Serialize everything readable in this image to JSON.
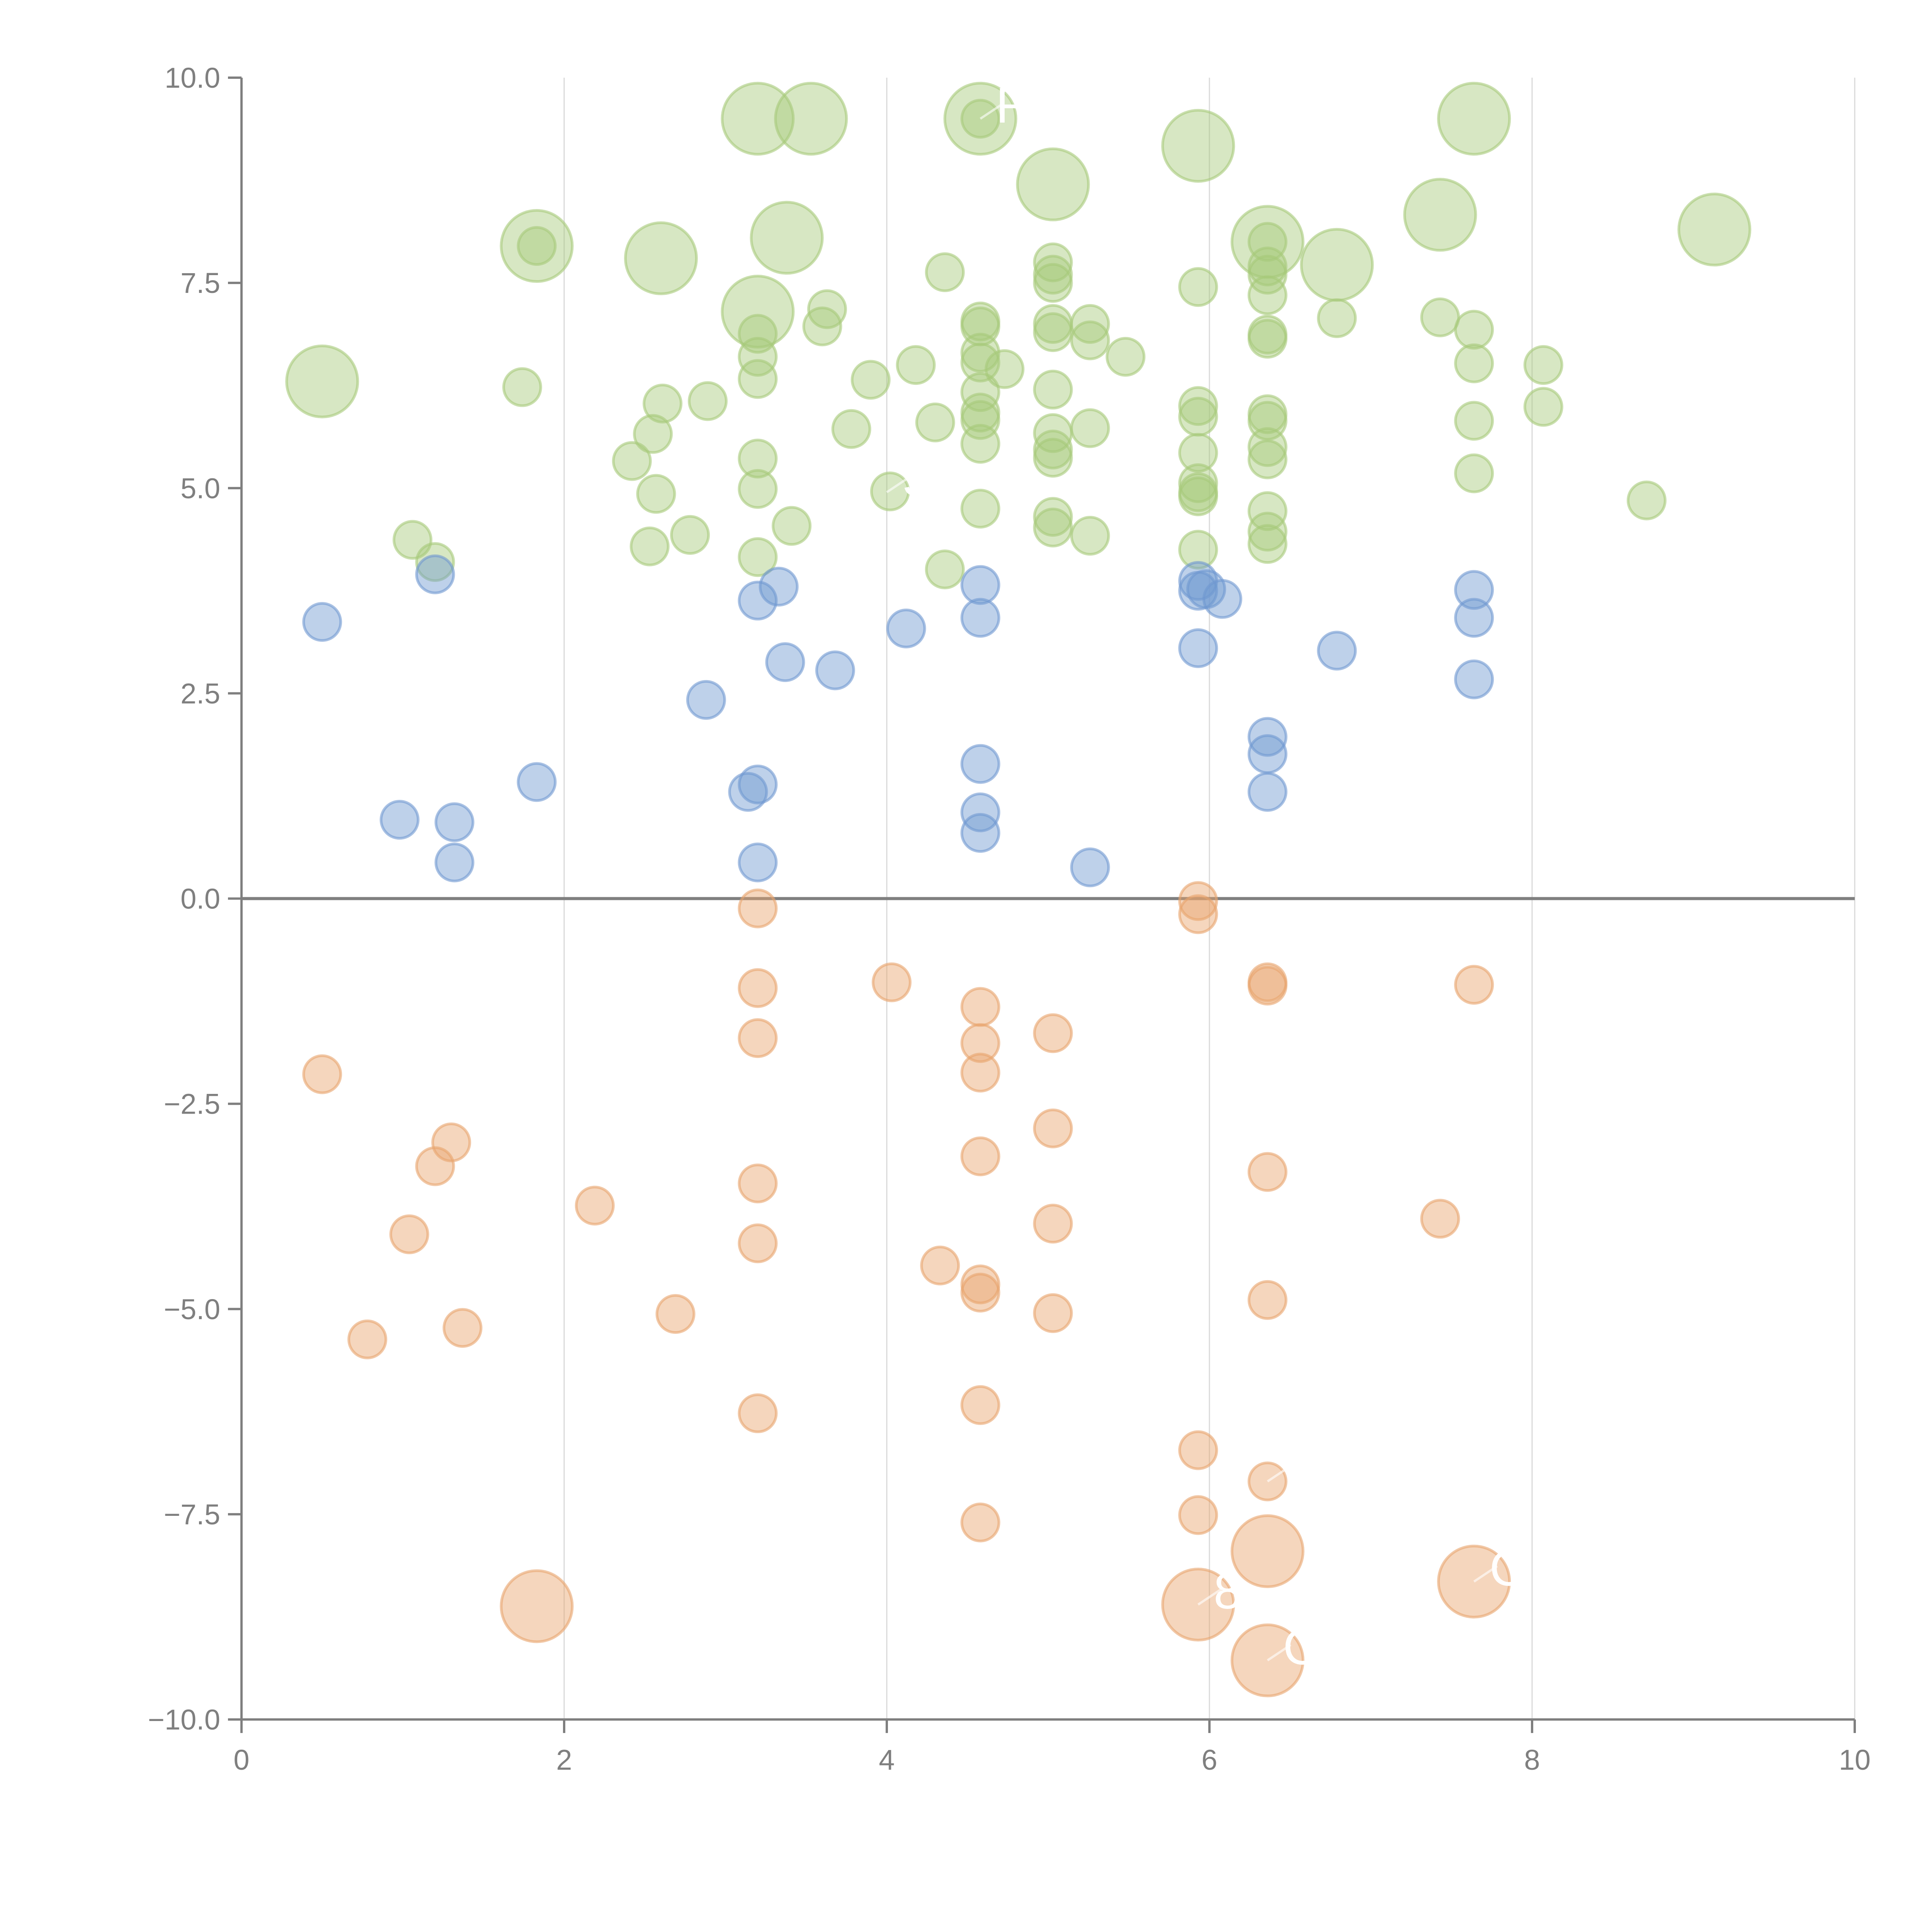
{
  "chart_data": {
    "type": "scatter",
    "subtype": "bubble",
    "title": "",
    "xlabel": "",
    "ylabel": "",
    "xlim": [
      0,
      10
    ],
    "ylim": [
      -10,
      10
    ],
    "grid": "vertical-lines-at-x-ticks",
    "legend": "none",
    "x_ticks": [
      0,
      2,
      4,
      6,
      8,
      10
    ],
    "x_tick_labels": [
      "0",
      "2",
      "4",
      "6",
      "8",
      "10"
    ],
    "y_ticks": [
      -10,
      -7.5,
      -5,
      -2.5,
      0,
      2.5,
      5,
      7.5,
      10
    ],
    "y_tick_labels": [
      "−10.0",
      "−7.5",
      "−5.0",
      "−2.5",
      "0.0",
      "2.5",
      "5.0",
      "7.5",
      "10.0"
    ],
    "reference_line": {
      "axis": "y",
      "value": 0
    },
    "colors": {
      "green": "#a6c97a",
      "blue": "#6f98d0",
      "orange": "#e8a46c",
      "axis": "#7f7f7f",
      "grid": "#d9d9d9",
      "label": "#ffffff"
    },
    "series": [
      {
        "name": "green",
        "color": "#a6c97a",
        "points": [
          {
            "x": 0.5,
            "y": 6.3,
            "size": "large"
          },
          {
            "x": 1.83,
            "y": 7.95,
            "size": "large"
          },
          {
            "x": 1.83,
            "y": 7.95,
            "size": "small"
          },
          {
            "x": 2.6,
            "y": 7.8,
            "size": "large"
          },
          {
            "x": 3.2,
            "y": 9.5,
            "size": "large"
          },
          {
            "x": 3.53,
            "y": 9.5,
            "size": "large"
          },
          {
            "x": 3.38,
            "y": 8.05,
            "size": "large"
          },
          {
            "x": 3.2,
            "y": 7.15,
            "size": "large"
          },
          {
            "x": 4.58,
            "y": 9.5,
            "size": "large"
          },
          {
            "x": 4.58,
            "y": 9.5,
            "size": "small"
          },
          {
            "x": 5.03,
            "y": 8.7,
            "size": "large"
          },
          {
            "x": 5.93,
            "y": 9.17,
            "size": "large"
          },
          {
            "x": 6.36,
            "y": 8.0,
            "size": "large"
          },
          {
            "x": 6.79,
            "y": 7.72,
            "size": "large"
          },
          {
            "x": 7.43,
            "y": 8.33,
            "size": "large"
          },
          {
            "x": 7.64,
            "y": 9.5,
            "size": "large"
          },
          {
            "x": 9.13,
            "y": 8.15,
            "size": "large"
          },
          {
            "x": 1.06,
            "y": 4.37,
            "size": "small"
          },
          {
            "x": 1.2,
            "y": 4.1,
            "size": "small"
          },
          {
            "x": 1.74,
            "y": 6.23,
            "size": "small"
          },
          {
            "x": 2.42,
            "y": 5.33,
            "size": "small"
          },
          {
            "x": 2.53,
            "y": 4.29,
            "size": "small"
          },
          {
            "x": 2.57,
            "y": 4.93,
            "size": "small"
          },
          {
            "x": 2.55,
            "y": 5.66,
            "size": "small"
          },
          {
            "x": 2.61,
            "y": 6.03,
            "size": "small"
          },
          {
            "x": 2.78,
            "y": 4.43,
            "size": "small"
          },
          {
            "x": 2.89,
            "y": 6.06,
            "size": "small"
          },
          {
            "x": 3.2,
            "y": 6.88,
            "size": "small"
          },
          {
            "x": 3.2,
            "y": 6.6,
            "size": "small"
          },
          {
            "x": 3.2,
            "y": 6.33,
            "size": "small"
          },
          {
            "x": 3.2,
            "y": 5.36,
            "size": "small"
          },
          {
            "x": 3.2,
            "y": 4.99,
            "size": "small"
          },
          {
            "x": 3.2,
            "y": 4.16,
            "size": "small"
          },
          {
            "x": 3.41,
            "y": 4.54,
            "size": "small"
          },
          {
            "x": 3.6,
            "y": 6.97,
            "size": "small"
          },
          {
            "x": 3.63,
            "y": 7.18,
            "size": "small"
          },
          {
            "x": 3.78,
            "y": 5.72,
            "size": "small"
          },
          {
            "x": 3.9,
            "y": 6.32,
            "size": "small"
          },
          {
            "x": 4.02,
            "y": 4.96,
            "size": "small"
          },
          {
            "x": 4.18,
            "y": 6.5,
            "size": "small"
          },
          {
            "x": 4.3,
            "y": 5.8,
            "size": "small"
          },
          {
            "x": 4.36,
            "y": 7.63,
            "size": "small"
          },
          {
            "x": 4.36,
            "y": 4.01,
            "size": "small"
          },
          {
            "x": 4.58,
            "y": 7.03,
            "size": "small"
          },
          {
            "x": 4.58,
            "y": 6.97,
            "size": "small"
          },
          {
            "x": 4.58,
            "y": 6.65,
            "size": "small"
          },
          {
            "x": 4.58,
            "y": 6.53,
            "size": "small"
          },
          {
            "x": 4.58,
            "y": 6.17,
            "size": "small"
          },
          {
            "x": 4.58,
            "y": 5.92,
            "size": "small"
          },
          {
            "x": 4.58,
            "y": 5.83,
            "size": "small"
          },
          {
            "x": 4.58,
            "y": 5.54,
            "size": "small"
          },
          {
            "x": 4.58,
            "y": 4.75,
            "size": "small"
          },
          {
            "x": 4.73,
            "y": 6.45,
            "size": "small"
          },
          {
            "x": 5.03,
            "y": 7.75,
            "size": "small"
          },
          {
            "x": 5.03,
            "y": 7.6,
            "size": "small"
          },
          {
            "x": 5.03,
            "y": 7.5,
            "size": "small"
          },
          {
            "x": 5.03,
            "y": 7.0,
            "size": "small"
          },
          {
            "x": 5.03,
            "y": 6.9,
            "size": "small"
          },
          {
            "x": 5.03,
            "y": 6.2,
            "size": "small"
          },
          {
            "x": 5.03,
            "y": 5.67,
            "size": "small"
          },
          {
            "x": 5.03,
            "y": 5.47,
            "size": "small"
          },
          {
            "x": 5.03,
            "y": 5.37,
            "size": "small"
          },
          {
            "x": 5.03,
            "y": 4.65,
            "size": "small"
          },
          {
            "x": 5.03,
            "y": 4.52,
            "size": "small"
          },
          {
            "x": 5.26,
            "y": 7.0,
            "size": "small"
          },
          {
            "x": 5.26,
            "y": 6.8,
            "size": "small"
          },
          {
            "x": 5.26,
            "y": 5.73,
            "size": "small"
          },
          {
            "x": 5.26,
            "y": 4.42,
            "size": "small"
          },
          {
            "x": 5.48,
            "y": 6.6,
            "size": "small"
          },
          {
            "x": 5.93,
            "y": 7.45,
            "size": "small"
          },
          {
            "x": 5.93,
            "y": 6.0,
            "size": "small"
          },
          {
            "x": 5.93,
            "y": 5.87,
            "size": "small"
          },
          {
            "x": 5.93,
            "y": 5.43,
            "size": "small"
          },
          {
            "x": 5.93,
            "y": 5.06,
            "size": "small"
          },
          {
            "x": 5.93,
            "y": 4.95,
            "size": "small"
          },
          {
            "x": 5.93,
            "y": 4.9,
            "size": "small"
          },
          {
            "x": 5.93,
            "y": 4.25,
            "size": "small"
          },
          {
            "x": 6.36,
            "y": 8.0,
            "size": "small"
          },
          {
            "x": 6.36,
            "y": 7.7,
            "size": "small"
          },
          {
            "x": 6.36,
            "y": 7.6,
            "size": "small"
          },
          {
            "x": 6.36,
            "y": 7.35,
            "size": "small"
          },
          {
            "x": 6.36,
            "y": 6.87,
            "size": "small"
          },
          {
            "x": 6.36,
            "y": 6.82,
            "size": "small"
          },
          {
            "x": 6.36,
            "y": 5.9,
            "size": "small"
          },
          {
            "x": 6.36,
            "y": 5.82,
            "size": "small"
          },
          {
            "x": 6.36,
            "y": 5.5,
            "size": "small"
          },
          {
            "x": 6.36,
            "y": 5.35,
            "size": "small"
          },
          {
            "x": 6.36,
            "y": 4.72,
            "size": "small"
          },
          {
            "x": 6.36,
            "y": 4.47,
            "size": "small"
          },
          {
            "x": 6.36,
            "y": 4.32,
            "size": "small"
          },
          {
            "x": 6.79,
            "y": 7.07,
            "size": "small"
          },
          {
            "x": 7.43,
            "y": 7.08,
            "size": "small"
          },
          {
            "x": 7.64,
            "y": 6.93,
            "size": "small"
          },
          {
            "x": 7.64,
            "y": 6.52,
            "size": "small"
          },
          {
            "x": 7.64,
            "y": 5.82,
            "size": "small"
          },
          {
            "x": 7.64,
            "y": 5.18,
            "size": "small"
          },
          {
            "x": 8.07,
            "y": 6.5,
            "size": "small"
          },
          {
            "x": 8.07,
            "y": 5.99,
            "size": "small"
          },
          {
            "x": 8.71,
            "y": 4.85,
            "size": "small"
          }
        ]
      },
      {
        "name": "blue",
        "color": "#6f98d0",
        "points": [
          {
            "x": 0.5,
            "y": 3.37,
            "size": "small"
          },
          {
            "x": 0.98,
            "y": 0.96,
            "size": "small"
          },
          {
            "x": 1.2,
            "y": 3.95,
            "size": "small"
          },
          {
            "x": 1.32,
            "y": 0.93,
            "size": "small"
          },
          {
            "x": 1.32,
            "y": 0.44,
            "size": "small"
          },
          {
            "x": 1.83,
            "y": 1.42,
            "size": "small"
          },
          {
            "x": 2.88,
            "y": 2.42,
            "size": "small"
          },
          {
            "x": 3.14,
            "y": 1.3,
            "size": "small"
          },
          {
            "x": 3.2,
            "y": 3.63,
            "size": "small"
          },
          {
            "x": 3.2,
            "y": 1.39,
            "size": "small"
          },
          {
            "x": 3.2,
            "y": 0.44,
            "size": "small"
          },
          {
            "x": 3.33,
            "y": 3.8,
            "size": "small"
          },
          {
            "x": 3.37,
            "y": 2.88,
            "size": "small"
          },
          {
            "x": 3.68,
            "y": 2.78,
            "size": "small"
          },
          {
            "x": 4.12,
            "y": 3.29,
            "size": "small"
          },
          {
            "x": 4.58,
            "y": 3.82,
            "size": "small"
          },
          {
            "x": 4.58,
            "y": 3.42,
            "size": "small"
          },
          {
            "x": 4.58,
            "y": 1.64,
            "size": "small"
          },
          {
            "x": 4.58,
            "y": 1.05,
            "size": "small"
          },
          {
            "x": 4.58,
            "y": 0.8,
            "size": "small"
          },
          {
            "x": 5.26,
            "y": 0.38,
            "size": "small"
          },
          {
            "x": 5.93,
            "y": 3.87,
            "size": "small"
          },
          {
            "x": 5.93,
            "y": 3.75,
            "size": "small"
          },
          {
            "x": 5.93,
            "y": 3.05,
            "size": "small"
          },
          {
            "x": 5.98,
            "y": 3.77,
            "size": "small"
          },
          {
            "x": 6.08,
            "y": 3.65,
            "size": "small"
          },
          {
            "x": 6.36,
            "y": 1.97,
            "size": "small"
          },
          {
            "x": 6.36,
            "y": 1.76,
            "size": "small"
          },
          {
            "x": 6.36,
            "y": 1.3,
            "size": "small"
          },
          {
            "x": 6.79,
            "y": 3.02,
            "size": "small"
          },
          {
            "x": 7.64,
            "y": 3.76,
            "size": "small"
          },
          {
            "x": 7.64,
            "y": 3.42,
            "size": "small"
          },
          {
            "x": 7.64,
            "y": 2.67,
            "size": "small"
          }
        ]
      },
      {
        "name": "orange",
        "color": "#e8a46c",
        "points": [
          {
            "x": 0.5,
            "y": -2.14,
            "size": "small"
          },
          {
            "x": 0.78,
            "y": -5.37,
            "size": "small"
          },
          {
            "x": 1.04,
            "y": -4.09,
            "size": "small"
          },
          {
            "x": 1.2,
            "y": -3.26,
            "size": "small"
          },
          {
            "x": 1.3,
            "y": -2.97,
            "size": "small"
          },
          {
            "x": 1.37,
            "y": -5.23,
            "size": "small"
          },
          {
            "x": 1.83,
            "y": -8.62,
            "size": "large"
          },
          {
            "x": 2.19,
            "y": -3.74,
            "size": "small"
          },
          {
            "x": 2.69,
            "y": -5.06,
            "size": "small"
          },
          {
            "x": 3.2,
            "y": -0.12,
            "size": "small"
          },
          {
            "x": 3.2,
            "y": -1.09,
            "size": "small"
          },
          {
            "x": 3.2,
            "y": -1.7,
            "size": "small"
          },
          {
            "x": 3.2,
            "y": -3.47,
            "size": "small"
          },
          {
            "x": 3.2,
            "y": -4.2,
            "size": "small"
          },
          {
            "x": 3.2,
            "y": -6.27,
            "size": "small"
          },
          {
            "x": 4.03,
            "y": -1.02,
            "size": "small"
          },
          {
            "x": 4.33,
            "y": -4.47,
            "size": "small"
          },
          {
            "x": 4.58,
            "y": -1.32,
            "size": "small"
          },
          {
            "x": 4.58,
            "y": -1.76,
            "size": "small"
          },
          {
            "x": 4.58,
            "y": -2.12,
            "size": "small"
          },
          {
            "x": 4.58,
            "y": -3.14,
            "size": "small"
          },
          {
            "x": 4.58,
            "y": -4.7,
            "size": "small"
          },
          {
            "x": 4.58,
            "y": -4.8,
            "size": "small"
          },
          {
            "x": 4.58,
            "y": -6.17,
            "size": "small"
          },
          {
            "x": 4.58,
            "y": -7.6,
            "size": "small"
          },
          {
            "x": 5.03,
            "y": -1.64,
            "size": "small"
          },
          {
            "x": 5.03,
            "y": -2.8,
            "size": "small"
          },
          {
            "x": 5.03,
            "y": -3.96,
            "size": "small"
          },
          {
            "x": 5.03,
            "y": -5.05,
            "size": "small"
          },
          {
            "x": 5.93,
            "y": -0.03,
            "size": "small"
          },
          {
            "x": 5.93,
            "y": -0.19,
            "size": "small"
          },
          {
            "x": 5.93,
            "y": -6.72,
            "size": "small"
          },
          {
            "x": 5.93,
            "y": -7.51,
            "size": "small"
          },
          {
            "x": 5.93,
            "y": -8.6,
            "size": "large"
          },
          {
            "x": 6.36,
            "y": -1.02,
            "size": "small"
          },
          {
            "x": 6.36,
            "y": -1.06,
            "size": "small"
          },
          {
            "x": 6.36,
            "y": -3.33,
            "size": "small"
          },
          {
            "x": 6.36,
            "y": -4.89,
            "size": "small"
          },
          {
            "x": 6.36,
            "y": -7.1,
            "size": "small"
          },
          {
            "x": 6.36,
            "y": -7.95,
            "size": "large"
          },
          {
            "x": 6.36,
            "y": -9.28,
            "size": "large"
          },
          {
            "x": 7.43,
            "y": -3.9,
            "size": "small"
          },
          {
            "x": 7.64,
            "y": -1.05,
            "size": "small"
          },
          {
            "x": 7.64,
            "y": -8.32,
            "size": "large"
          }
        ]
      }
    ],
    "annotations": [
      {
        "text": "R",
        "x": 4.58,
        "y": 9.5,
        "note": "white label partially visible"
      },
      {
        "text": "S",
        "x": 4.0,
        "y": 4.95,
        "note": "white label partially visible"
      },
      {
        "text": "C",
        "x": 7.64,
        "y": -8.32,
        "note": "white label partially visible"
      },
      {
        "text": "C",
        "x": 6.36,
        "y": -9.28,
        "note": "white label partially visible"
      },
      {
        "text": "8",
        "x": 5.93,
        "y": -8.6,
        "note": "white label partially visible"
      },
      {
        "text": "T",
        "x": 6.36,
        "y": -7.1,
        "note": "white label partially visible"
      }
    ]
  }
}
